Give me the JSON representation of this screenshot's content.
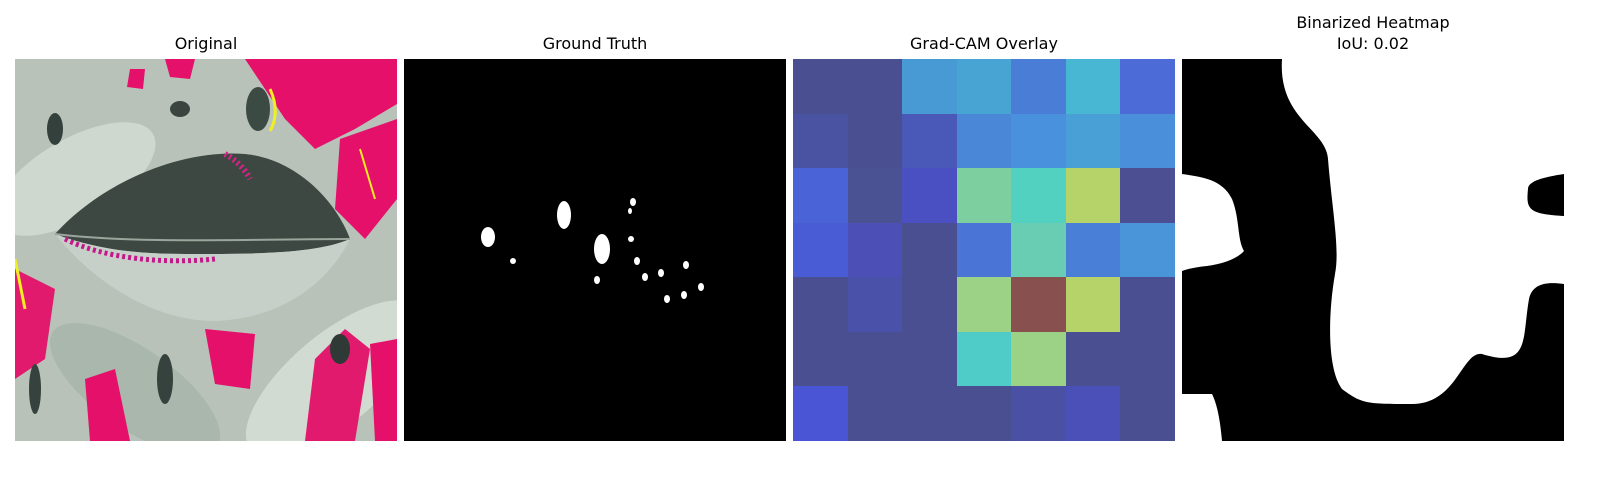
{
  "panels": [
    {
      "title": "Original"
    },
    {
      "title": "Ground Truth"
    },
    {
      "title": "Grad-CAM Overlay"
    },
    {
      "title": "Binarized Heatmap",
      "subtitle": "IoU: 0.02"
    }
  ],
  "gradcam_grid": [
    [
      "#4a4f91",
      "#4a4f91",
      "#479ad4",
      "#47a4d3",
      "#4a7ed6",
      "#47b7d4",
      "#4c6bd7"
    ],
    [
      "#4a52a2",
      "#4a4f91",
      "#4a58b8",
      "#4a88d7",
      "#4a91dd",
      "#49a0d6",
      "#4a8fda"
    ],
    [
      "#4a64d8",
      "#4b5294",
      "#4a4fc2",
      "#7ecf9f",
      "#53d1c0",
      "#b5d369",
      "#4d4f93"
    ],
    [
      "#4a5bd6",
      "#4b4fb6",
      "#4a4f91",
      "#4a74d6",
      "#68cdb2",
      "#4a7fd7",
      "#4a94d9"
    ],
    [
      "#4a4f91",
      "#4a51a9",
      "#4a4f91",
      "#9bd286",
      "#88514f",
      "#b5d369",
      "#4a4f91"
    ],
    [
      "#4a4f91",
      "#4a4f91",
      "#4a4f91",
      "#50ccc8",
      "#9bd286",
      "#4a4f91",
      "#4a4f91"
    ],
    [
      "#4a55d6",
      "#4a4f91",
      "#4a4f91",
      "#4a4f91",
      "#4a50a4",
      "#4b4fb8",
      "#4a4f91"
    ]
  ]
}
